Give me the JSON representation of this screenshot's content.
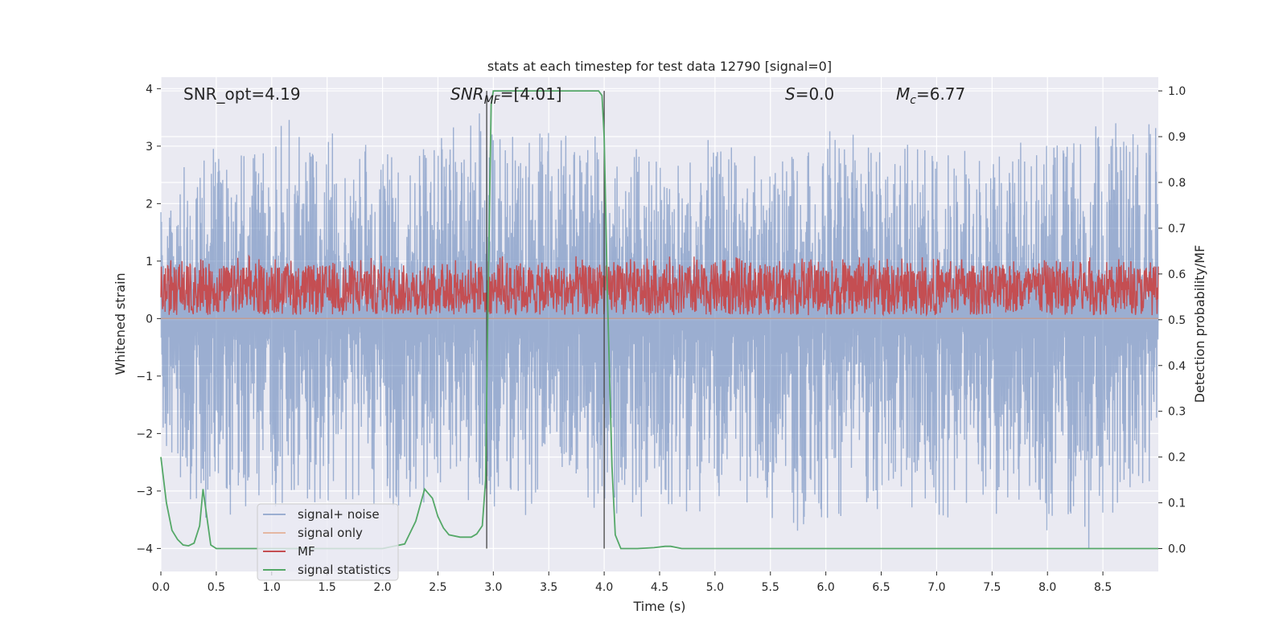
{
  "chart_data": {
    "type": "line",
    "title": "stats at each timestep for test data 12790 [signal=0]",
    "xlabel": "Time (s)",
    "ylabel_left": "Whitened strain",
    "ylabel_right": "Detection probability/MF",
    "xlim": [
      0.0,
      9.0
    ],
    "ylim_left": [
      -4.4,
      4.2
    ],
    "ylim_right": [
      -0.05,
      1.03
    ],
    "xticks": [
      0.0,
      0.5,
      1.0,
      1.5,
      2.0,
      2.5,
      3.0,
      3.5,
      4.0,
      4.5,
      5.0,
      5.5,
      6.0,
      6.5,
      7.0,
      7.5,
      8.0,
      8.5
    ],
    "xtick_labels": [
      "0.0",
      "0.5",
      "1.0",
      "1.5",
      "2.0",
      "2.5",
      "3.0",
      "3.5",
      "4.0",
      "4.5",
      "5.0",
      "5.5",
      "6.0",
      "6.5",
      "7.0",
      "7.5",
      "8.0",
      "8.5"
    ],
    "yticks_left": [
      4,
      3,
      2,
      1,
      0,
      -1,
      -2,
      -3,
      -4
    ],
    "ytick_labels_left": [
      "4",
      "3",
      "2",
      "1",
      "0",
      "−1",
      "−2",
      "−3",
      "−4"
    ],
    "yticks_right": [
      1.0,
      0.9,
      0.8,
      0.7,
      0.6,
      0.5,
      0.4,
      0.3,
      0.2,
      0.1,
      0.0
    ],
    "ytick_labels_right": [
      "1.0",
      "0.9",
      "0.8",
      "0.7",
      "0.6",
      "0.5",
      "0.4",
      "0.3",
      "0.2",
      "0.1",
      "0.0"
    ],
    "grid": true,
    "legend_position": "lower-left",
    "annotations": {
      "snr_opt": "SNR_opt=4.19",
      "snr_mf_italic": "SNR",
      "snr_mf_sub": "MF",
      "snr_mf_value": "=[4.01]",
      "s_italic": "S",
      "s_value": "=0.0",
      "mc_italic": "M",
      "mc_sub": "c",
      "mc_value": "=6.77"
    },
    "vertical_markers_x": [
      2.94,
      4.0
    ],
    "series": [
      {
        "name": "signal+ noise",
        "axis": "left",
        "color": "#4c72b0",
        "opacity": 0.5,
        "kind": "noise",
        "envelope_upper": [
          [
            0.0,
            2.0
          ],
          [
            0.4,
            3.2
          ],
          [
            0.8,
            2.9
          ],
          [
            1.0,
            3.5
          ],
          [
            1.5,
            3.3
          ],
          [
            2.0,
            2.9
          ],
          [
            2.5,
            3.2
          ],
          [
            3.0,
            3.6
          ],
          [
            3.5,
            3.3
          ],
          [
            4.0,
            3.1
          ],
          [
            4.5,
            2.8
          ],
          [
            5.0,
            3.0
          ],
          [
            5.5,
            2.9
          ],
          [
            6.0,
            3.2
          ],
          [
            6.5,
            3.0
          ],
          [
            7.0,
            3.1
          ],
          [
            7.5,
            3.0
          ],
          [
            8.0,
            3.0
          ],
          [
            8.5,
            3.4
          ],
          [
            9.0,
            3.4
          ]
        ],
        "envelope_lower": [
          [
            0.0,
            -2.5
          ],
          [
            0.3,
            -3.7
          ],
          [
            0.8,
            -3.3
          ],
          [
            1.3,
            -3.6
          ],
          [
            1.8,
            -3.2
          ],
          [
            2.3,
            -3.3
          ],
          [
            2.8,
            -3.3
          ],
          [
            3.3,
            -3.4
          ],
          [
            3.8,
            -3.3
          ],
          [
            4.3,
            -3.4
          ],
          [
            4.8,
            -3.3
          ],
          [
            5.3,
            -3.2
          ],
          [
            5.8,
            -3.8
          ],
          [
            6.3,
            -3.2
          ],
          [
            6.8,
            -3.6
          ],
          [
            7.3,
            -3.4
          ],
          [
            7.8,
            -3.4
          ],
          [
            8.4,
            -4.0
          ],
          [
            9.0,
            -2.6
          ]
        ]
      },
      {
        "name": "signal only",
        "axis": "left",
        "color": "#dd8452",
        "opacity": 0.5,
        "kind": "line",
        "points": [
          [
            0.0,
            0.0
          ],
          [
            9.0,
            0.0
          ]
        ]
      },
      {
        "name": "MF",
        "axis": "right",
        "color": "#c44e52",
        "opacity": 1.0,
        "kind": "band",
        "center": 0.55,
        "low": 0.51,
        "high": 0.62
      },
      {
        "name": "signal statistics",
        "axis": "right",
        "color": "#55a868",
        "opacity": 1.0,
        "kind": "line",
        "points": [
          [
            0.0,
            0.2
          ],
          [
            0.05,
            0.1
          ],
          [
            0.1,
            0.04
          ],
          [
            0.15,
            0.02
          ],
          [
            0.2,
            0.008
          ],
          [
            0.25,
            0.006
          ],
          [
            0.3,
            0.012
          ],
          [
            0.35,
            0.05
          ],
          [
            0.38,
            0.13
          ],
          [
            0.42,
            0.06
          ],
          [
            0.45,
            0.008
          ],
          [
            0.5,
            0.0
          ],
          [
            1.0,
            0.0
          ],
          [
            1.5,
            0.0
          ],
          [
            2.0,
            0.0
          ],
          [
            2.2,
            0.01
          ],
          [
            2.3,
            0.06
          ],
          [
            2.38,
            0.13
          ],
          [
            2.45,
            0.11
          ],
          [
            2.5,
            0.07
          ],
          [
            2.55,
            0.045
          ],
          [
            2.6,
            0.03
          ],
          [
            2.7,
            0.025
          ],
          [
            2.8,
            0.025
          ],
          [
            2.85,
            0.032
          ],
          [
            2.9,
            0.05
          ],
          [
            2.93,
            0.15
          ],
          [
            2.95,
            0.5
          ],
          [
            2.98,
            0.97
          ],
          [
            3.0,
            1.0
          ],
          [
            3.5,
            1.0
          ],
          [
            3.95,
            1.0
          ],
          [
            3.98,
            0.99
          ],
          [
            4.0,
            0.9
          ],
          [
            4.03,
            0.55
          ],
          [
            4.07,
            0.18
          ],
          [
            4.1,
            0.03
          ],
          [
            4.15,
            0.0
          ],
          [
            4.3,
            0.0
          ],
          [
            4.45,
            0.002
          ],
          [
            4.55,
            0.005
          ],
          [
            4.6,
            0.005
          ],
          [
            4.7,
            0.0
          ],
          [
            9.0,
            0.0
          ]
        ]
      }
    ]
  }
}
